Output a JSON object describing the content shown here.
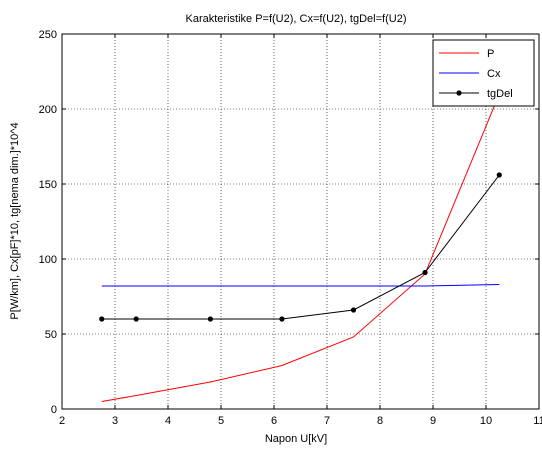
{
  "chart_data": {
    "type": "line",
    "title": "Karakteristike P=f(U2), Cx=f(U2), tgDel=f(U2)",
    "xlabel": "Napon U[kV]",
    "ylabel": "P[W/km], Cx[pF]*10, tg[nema dim.]*10^4",
    "xlim": [
      2,
      11
    ],
    "ylim": [
      0,
      250
    ],
    "xticks": [
      "2",
      "3",
      "4",
      "5",
      "6",
      "7",
      "8",
      "9",
      "10",
      "11"
    ],
    "yticks": [
      "0",
      "50",
      "100",
      "150",
      "200",
      "250"
    ],
    "grid": "dotted",
    "legend_position": "top-right",
    "series": [
      {
        "name": "P",
        "color": "#ff0000",
        "marker": "none",
        "x": [
          2.75,
          3.4,
          4.8,
          6.15,
          7.5,
          8.85,
          10.25
        ],
        "y": [
          5,
          9,
          18,
          29,
          48,
          90,
          210
        ]
      },
      {
        "name": "Cx",
        "color": "#0000ff",
        "marker": "none",
        "x": [
          2.75,
          3.4,
          4.8,
          6.15,
          7.5,
          8.85,
          10.25
        ],
        "y": [
          82,
          82,
          82,
          82,
          82,
          82,
          83
        ]
      },
      {
        "name": "tgDel",
        "color": "#000000",
        "marker": "dot",
        "x": [
          2.75,
          3.4,
          4.8,
          6.15,
          7.5,
          8.85,
          10.25
        ],
        "y": [
          60,
          60,
          60,
          60,
          66,
          91,
          156
        ]
      }
    ]
  }
}
